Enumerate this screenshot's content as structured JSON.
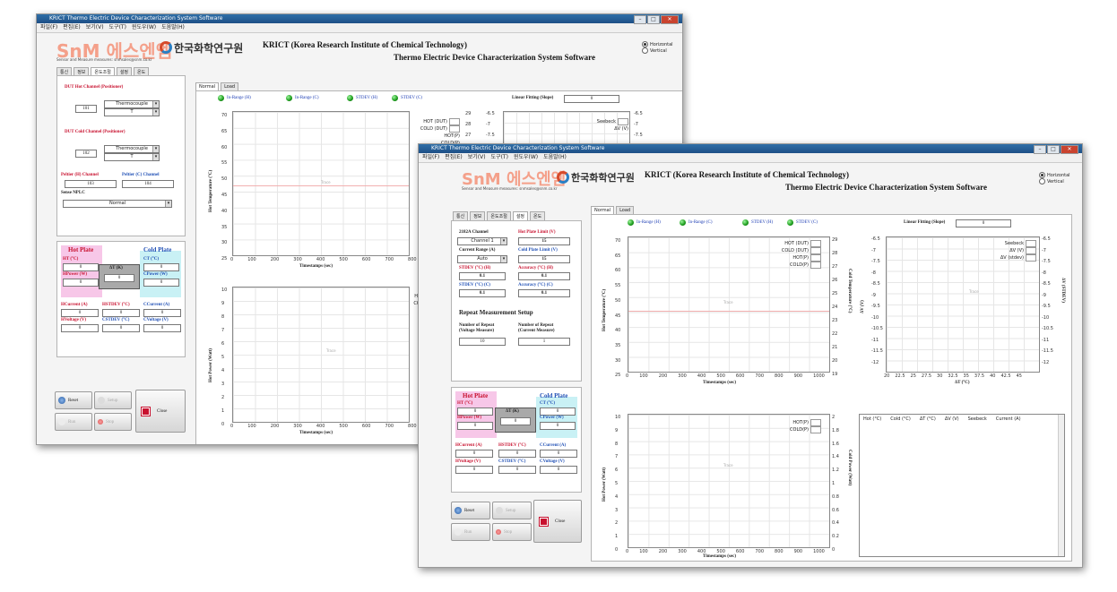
{
  "window_title": "KRICT Thermo Electric Device Characterization System Software",
  "menu": [
    "파일(F)",
    "편집(E)",
    "보기(V)",
    "도구(T)",
    "윈도우(W)",
    "도움말(H)"
  ],
  "logo": {
    "text": "SnM 에스엔엠",
    "sub": "Sensor and Measure measures: snmsales@snm.co.kr",
    "institute": "한국화학연구원"
  },
  "header": {
    "line1": "KRICT (Korea Research Institute of Chemical Technology)",
    "line2": "Thermo Electric Device Characterization System Software"
  },
  "orientation": {
    "options": [
      "Horizontal",
      "Vertical"
    ],
    "selected": "Horizontal"
  },
  "left_tabs": [
    "통신",
    "정보",
    "온도조절",
    "설정",
    "온도"
  ],
  "plot_tabs": [
    "Normal",
    "Load"
  ],
  "leds": [
    "In-Range (H)",
    "In-Range (C)",
    "STDEV (H)",
    "STDEV (C)"
  ],
  "linear_fitting": {
    "label": "Linear Fitting (Slope)",
    "value": "0"
  },
  "back_window": {
    "active_left_tab": "온도조절",
    "dut_hot": {
      "title": "DUT Hot Channel (Positioner)",
      "channel": "101",
      "sensor": "Thermocouple",
      "type": "T"
    },
    "dut_cold": {
      "title": "DUT Cold Channel (Positioner)",
      "channel": "102",
      "sensor": "Thermocouple",
      "type": "T"
    },
    "peltier_h": {
      "label": "Peltier (H) Channel",
      "value": "103"
    },
    "peltier_c": {
      "label": "Peltier (C) Channel",
      "value": "104"
    },
    "sense_nplc": {
      "label": "Sense NPLC",
      "value": "Normal"
    },
    "upper_plot": {
      "ylabel": "Hot Temperature (°C)",
      "y_ticks": [
        "70",
        "65",
        "60",
        "55",
        "50",
        "45",
        "40",
        "35",
        "30",
        "25"
      ],
      "x_ticks": [
        "0",
        "100",
        "200",
        "300",
        "400",
        "500",
        "600",
        "700",
        "800"
      ],
      "xlabel": "Timestamps (sec)",
      "right_ticks": [
        "29",
        "28",
        "27"
      ],
      "legend": [
        "HOT (DUT)",
        "COLD (DUT)",
        "HOT(P)",
        "COLD(P)"
      ],
      "trace": "Trace"
    },
    "lower_plot": {
      "ylabel": "Hot Power (Watt)",
      "y_ticks": [
        "10",
        "9",
        "8",
        "7",
        "6",
        "5",
        "4",
        "3",
        "2",
        "1",
        "0"
      ],
      "x_ticks": [
        "0",
        "100",
        "200",
        "300",
        "400",
        "500",
        "600",
        "700",
        "800"
      ],
      "xlabel": "Timestamps (sec)",
      "legend": [
        "HOT",
        "COLI"
      ],
      "trace": "Trace"
    },
    "right_plot_top": {
      "ticks_left": [
        "-6.5",
        "-7",
        "-7.5"
      ],
      "ticks_right": [
        "-6.5",
        "-7",
        "-7.5"
      ],
      "legend": [
        "Seebeck",
        "ΔV (V)"
      ]
    }
  },
  "front_window": {
    "active_left_tab": "설정",
    "channel_2182a": {
      "label": "2182A Channel",
      "value": "Channel 1"
    },
    "hot_plate_limit": {
      "label": "Hot Plate Limit (V)",
      "value": "15"
    },
    "current_range": {
      "label": "Current Range (A)",
      "value": "Auto"
    },
    "cold_plate_limit": {
      "label": "Cold Plate Limit (V)",
      "value": "15"
    },
    "stdev_h": {
      "label": "STDEV (°C) (H)",
      "value": "0.1"
    },
    "accuracy_h": {
      "label": "Accuracy (°C) (H)",
      "value": "0.1"
    },
    "stdev_c": {
      "label": "STDEV (°C) (C)",
      "value": "0.1"
    },
    "accuracy_c": {
      "label": "Accuracy (°C) (C)",
      "value": "0.1"
    },
    "repeat_title": "Repeat Measurement Setup",
    "repeat_voltage": {
      "label1": "Number of Repeat",
      "label2": "(Voltage Measure)",
      "value": "10"
    },
    "repeat_current": {
      "label1": "Number of Repeat",
      "label2": "(Current Measure)",
      "value": "1"
    },
    "upper_plot": {
      "ylabel": "Hot Temperature (°C)",
      "y2label": "Cold Temperature (°C)",
      "y_ticks": [
        "70",
        "65",
        "60",
        "55",
        "50",
        "45",
        "40",
        "35",
        "30",
        "25"
      ],
      "y2_ticks": [
        "29",
        "28",
        "27",
        "26",
        "25",
        "24",
        "23",
        "22",
        "21",
        "20",
        "19"
      ],
      "x_ticks": [
        "0",
        "100",
        "200",
        "300",
        "400",
        "500",
        "600",
        "700",
        "800",
        "900",
        "1000"
      ],
      "xlabel": "Timestamps (sec)",
      "legend": [
        "HOT (DUT)",
        "COLD (DUT)",
        "HOT(P)",
        "COLD(P)"
      ],
      "trace": "Trace"
    },
    "lower_plot": {
      "ylabel": "Hot Power (Watt)",
      "y2label": "Cold Power (Watt)",
      "y_ticks": [
        "10",
        "9",
        "8",
        "7",
        "6",
        "5",
        "4",
        "3",
        "2",
        "1",
        "0"
      ],
      "y2_ticks": [
        "2",
        "1.8",
        "1.6",
        "1.4",
        "1.2",
        "1",
        "0.8",
        "0.6",
        "0.4",
        "0.2",
        "0"
      ],
      "x_ticks": [
        "0",
        "100",
        "200",
        "300",
        "400",
        "500",
        "600",
        "700",
        "800",
        "900",
        "1000"
      ],
      "xlabel": "Timestamps (sec)",
      "legend": [
        "HOT(P)",
        "COLD(P)"
      ],
      "trace": "Trace"
    },
    "seebeck_plot": {
      "ylabel": "ΔV (V)",
      "y2label": "ΔV (STDEV)",
      "y_ticks": [
        "-6.5",
        "-7",
        "-7.5",
        "-8",
        "-8.5",
        "-9",
        "-9.5",
        "-10",
        "-10.5",
        "-11",
        "-11.5",
        "-12"
      ],
      "y2_ticks": [
        "-6.5",
        "-7",
        "-7.5",
        "-8",
        "-8.5",
        "-9",
        "-9.5",
        "-10",
        "-10.5",
        "-11",
        "-11.5",
        "-12"
      ],
      "x_ticks": [
        "20",
        "22.5",
        "25",
        "27.5",
        "30",
        "32.5",
        "35",
        "37.5",
        "40",
        "42.5",
        "45"
      ],
      "xlabel": "ΔT (°C)",
      "legend": [
        "Seebeck",
        "ΔV (V)",
        "ΔV (stdev)"
      ],
      "trace": "Trace"
    },
    "table_columns": [
      "Hot (°C)",
      "Cold (°C)",
      "ΔT (°C)",
      "ΔV (V)",
      "Seebeck",
      "Current (A)"
    ]
  },
  "plates": {
    "hot_title": "Hot Plate",
    "cold_title": "Cold Plate",
    "ht_label": "HT (°C)",
    "ht_value": "0",
    "ct_label": "CT (°C)",
    "ct_value": "0",
    "dt_label": "ΔT (K)",
    "dt_value": "0",
    "hpower_label": "HPower (W)",
    "hpower_value": "0",
    "cpower_label": "CPower (W)",
    "cpower_value": "0",
    "hcurrent_label": "HCurrent (A)",
    "hcurrent_value": "0",
    "hstdev_label": "HSTDEV (°C)",
    "hstdev_value": "0",
    "ccurrent_label": "CCurrent (A)",
    "ccurrent_value": "0",
    "hvoltage_label": "HVoltage (V)",
    "hvoltage_value": "0",
    "cstdev_label": "CSTDEV (°C)",
    "cstdev_value": "0",
    "cvoltage_label": "CVoltage (V)",
    "cvoltage_value": "0"
  },
  "buttons": {
    "reset": "Reset",
    "setup": "Setup",
    "close": "Close",
    "run": "Run",
    "stop": "Stop"
  }
}
